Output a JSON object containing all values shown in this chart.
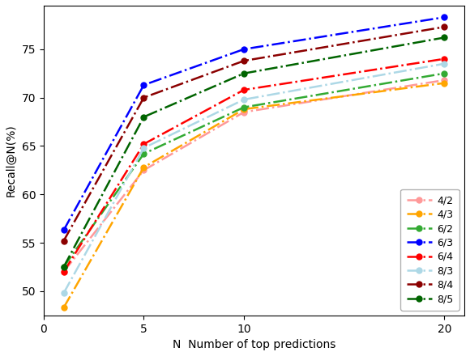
{
  "x": [
    1,
    5,
    10,
    20
  ],
  "series": {
    "4/2": {
      "values": [
        52.0,
        62.5,
        68.5,
        71.8
      ],
      "color": "#FF9999",
      "linestyle": "-.",
      "marker": "o"
    },
    "4/3": {
      "values": [
        48.3,
        62.8,
        68.8,
        71.5
      ],
      "color": "#FFA500",
      "linestyle": "-.",
      "marker": "o"
    },
    "6/2": {
      "values": [
        52.5,
        64.2,
        69.0,
        72.5
      ],
      "color": "#33AA33",
      "linestyle": "-.",
      "marker": "o"
    },
    "6/3": {
      "values": [
        56.3,
        71.3,
        75.0,
        78.3
      ],
      "color": "#0000FF",
      "linestyle": "-.",
      "marker": "o"
    },
    "6/4": {
      "values": [
        52.0,
        65.2,
        70.8,
        74.0
      ],
      "color": "#FF0000",
      "linestyle": "-.",
      "marker": "o"
    },
    "8/3": {
      "values": [
        49.8,
        64.8,
        69.8,
        73.5
      ],
      "color": "#ADD8E6",
      "linestyle": "-.",
      "marker": "o"
    },
    "8/4": {
      "values": [
        55.2,
        70.0,
        73.8,
        77.3
      ],
      "color": "#8B0000",
      "linestyle": "-.",
      "marker": "o"
    },
    "8/5": {
      "values": [
        52.5,
        68.0,
        72.5,
        76.2
      ],
      "color": "#006400",
      "linestyle": "-.",
      "marker": "o"
    }
  },
  "xlabel": "N  Number of top predictions",
  "ylabel": "Recall@N(%)",
  "xlim": [
    0,
    21
  ],
  "ylim": [
    47.5,
    79.5
  ],
  "yticks": [
    50,
    55,
    60,
    65,
    70,
    75
  ],
  "xticks": [
    0,
    5,
    10,
    20
  ],
  "legend_loc": "lower right",
  "figsize": [
    5.8,
    4.4
  ],
  "dpi": 100
}
